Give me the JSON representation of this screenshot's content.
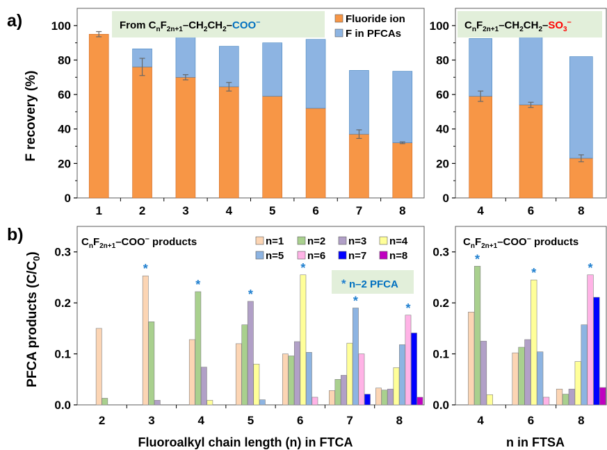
{
  "figure": {
    "panel_a_label": "a)",
    "panel_b_label": "b)",
    "a_ylabel": "F recovery (%)",
    "b_ylabel_main": "PFCA products (C/C",
    "b_ylabel_sub": "0",
    "b_ylabel_end": ")",
    "b_left_xlabel": "Fluoroalkyl chain length (n) in FTCA",
    "b_right_xlabel": "n in FTSA"
  },
  "titles": {
    "a_left": [
      "From C",
      "n",
      "F",
      "2n+1",
      "–CH",
      "2",
      "CH",
      "2",
      "–",
      "COO",
      "–"
    ],
    "a_right": [
      "C",
      "n",
      "F",
      "2n+1",
      "–CH",
      "2",
      "CH",
      "2",
      "–",
      "SO",
      "3",
      "–"
    ],
    "b_left": [
      "C",
      "n",
      "F",
      "2n+1",
      "–COO",
      "–",
      " products"
    ],
    "b_right": [
      "C",
      "n",
      "F",
      "2n+1",
      "–COO",
      "–",
      " products"
    ],
    "b_annotation_star": "*",
    "b_annotation_text": "n–2 PFCA"
  },
  "colors": {
    "fluoride": "#F79646",
    "pfca": "#8DB4E2",
    "blue_text": "#0070C0",
    "red_text": "#FF0000",
    "star": "#1F7FCF",
    "title_box": "#E2EFDA",
    "n_colors": [
      "#FCD5B4",
      "#A9D08E",
      "#B1A0C7",
      "#FFFF99",
      "#8DB4E2",
      "#FFB3E6",
      "#0000FF",
      "#C000C0"
    ]
  },
  "chart_data": [
    {
      "type": "bar",
      "stacked": true,
      "categories": [
        "1",
        "2",
        "3",
        "4",
        "5",
        "6",
        "7",
        "8"
      ],
      "series": [
        {
          "name": "Fluoride ion",
          "values": [
            95,
            76,
            70,
            64.5,
            59,
            52,
            37,
            32
          ],
          "errors": [
            1.5,
            5,
            1.5,
            2.5,
            0,
            0,
            2.5,
            0.5
          ]
        },
        {
          "name": "F in PFCAs",
          "values": [
            0,
            10.5,
            23.5,
            23.5,
            31,
            40,
            37,
            41.5
          ]
        }
      ],
      "ylim": [
        0,
        110
      ],
      "yticks": [
        0,
        20,
        40,
        60,
        80,
        100
      ],
      "ylabel": "F recovery (%)",
      "legend": "top-right"
    },
    {
      "type": "bar",
      "stacked": true,
      "categories": [
        "4",
        "6",
        "8"
      ],
      "series": [
        {
          "name": "Fluoride ion",
          "values": [
            59,
            54,
            23
          ],
          "errors": [
            3,
            1.5,
            2
          ]
        },
        {
          "name": "F in PFCAs",
          "values": [
            33.5,
            41,
            59
          ]
        }
      ],
      "ylim": [
        0,
        110
      ],
      "yticks": [
        0,
        20,
        40,
        60,
        80,
        100
      ]
    },
    {
      "type": "bar",
      "categories": [
        "2",
        "3",
        "4",
        "5",
        "6",
        "7",
        "8"
      ],
      "series": [
        {
          "name": "n=1",
          "values": [
            0.15,
            0.253,
            0.128,
            0.12,
            0.1,
            0.028,
            0.033
          ]
        },
        {
          "name": "n=2",
          "values": [
            0.013,
            0.163,
            0.222,
            0.157,
            0.096,
            0.05,
            0.029
          ]
        },
        {
          "name": "n=3",
          "values": [
            null,
            0.009,
            0.074,
            0.203,
            0.124,
            0.058,
            0.031
          ]
        },
        {
          "name": "n=4",
          "values": [
            null,
            null,
            0.009,
            0.08,
            0.255,
            0.121,
            0.073
          ]
        },
        {
          "name": "n=5",
          "values": [
            null,
            null,
            null,
            0.01,
            0.103,
            0.19,
            0.118
          ]
        },
        {
          "name": "n=6",
          "values": [
            null,
            null,
            null,
            null,
            0.015,
            0.1,
            0.176
          ]
        },
        {
          "name": "n=7",
          "values": [
            null,
            null,
            null,
            null,
            null,
            0.021,
            0.141
          ]
        },
        {
          "name": "n=8",
          "values": [
            null,
            null,
            null,
            null,
            null,
            null,
            0.015
          ]
        }
      ],
      "stars": [
        {
          "category": "3",
          "series": "n=1"
        },
        {
          "category": "4",
          "series": "n=2"
        },
        {
          "category": "5",
          "series": "n=3"
        },
        {
          "category": "6",
          "series": "n=4"
        },
        {
          "category": "7",
          "series": "n=5"
        },
        {
          "category": "8",
          "series": "n=6"
        }
      ],
      "ylim": [
        0,
        0.35
      ],
      "yticks": [
        "0.0",
        "0.1",
        "0.2",
        "0.3"
      ],
      "ylabel": "PFCA products (C/C0)",
      "xlabel": "Fluoroalkyl chain length (n) in FTCA",
      "legend": "top-right"
    },
    {
      "type": "bar",
      "categories": [
        "4",
        "6",
        "8"
      ],
      "series": [
        {
          "name": "n=1",
          "values": [
            0.182,
            0.102,
            0.031
          ]
        },
        {
          "name": "n=2",
          "values": [
            0.272,
            0.113,
            0.021
          ]
        },
        {
          "name": "n=3",
          "values": [
            0.125,
            0.128,
            0.031
          ]
        },
        {
          "name": "n=4",
          "values": [
            0.02,
            0.245,
            0.085
          ]
        },
        {
          "name": "n=5",
          "values": [
            null,
            0.104,
            0.157
          ]
        },
        {
          "name": "n=6",
          "values": [
            null,
            0.015,
            0.255
          ]
        },
        {
          "name": "n=7",
          "values": [
            null,
            null,
            0.211
          ]
        },
        {
          "name": "n=8",
          "values": [
            null,
            null,
            0.034
          ]
        }
      ],
      "stars": [
        {
          "category": "4",
          "series": "n=2"
        },
        {
          "category": "6",
          "series": "n=4"
        },
        {
          "category": "8",
          "series": "n=6"
        }
      ],
      "ylim": [
        0,
        0.35
      ],
      "yticks": [
        "0.0",
        "0.1",
        "0.2",
        "0.3"
      ],
      "xlabel": "n in FTSA"
    }
  ]
}
